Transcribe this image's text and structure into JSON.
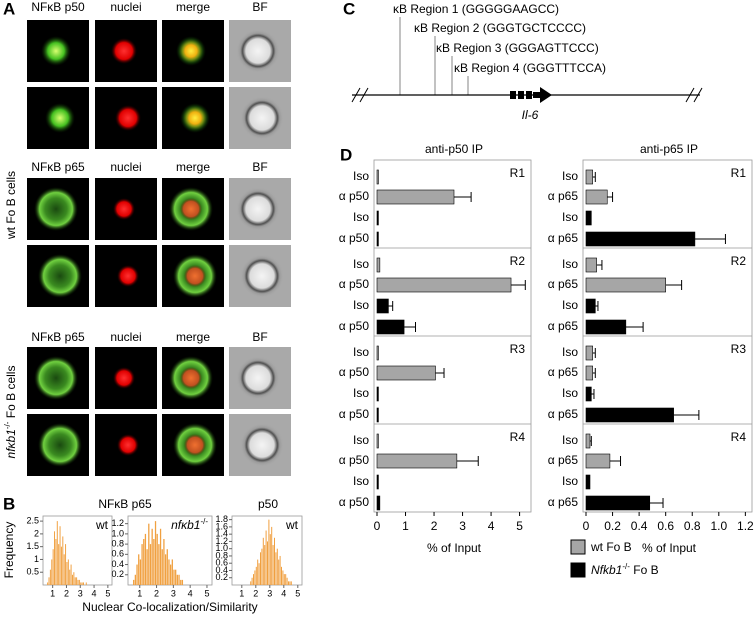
{
  "panel_a": {
    "letter": "A",
    "blocks": [
      {
        "headers": [
          "NFκB p50",
          "nuclei",
          "merge",
          "BF"
        ]
      },
      {
        "headers": [
          "NFκB p65",
          "nuclei",
          "merge",
          "BF"
        ]
      },
      {
        "headers": [
          "NFκB p65",
          "nuclei",
          "merge",
          "BF"
        ]
      }
    ],
    "wt_label": "wt Fo B cells",
    "ko_label": {
      "italic": "nfκb1",
      "sup": "-/-",
      "text": " Fo B cells"
    }
  },
  "panel_b": {
    "letter": "B",
    "group_title": "NFκB p65",
    "p50_title": "p50",
    "ylabel": "Frequency",
    "xlabel": "Nuclear Co-localization/Similarity"
  },
  "panel_c": {
    "letter": "C",
    "regions": [
      "κB Region 1 (GGGGGAAGCC)",
      "κB Region 2 (GGGTGCTCCCC)",
      "κB Region 3 (GGGAGTTCCC)",
      "κB Region 4 (GGGTTTCCA)"
    ],
    "gene": "Il-6"
  },
  "panel_d": {
    "letter": "D",
    "legend": [
      {
        "text": "wt Fo B",
        "color": "#a6a6a6"
      },
      {
        "italic": "Nfkb1",
        "sup": "-/-",
        "text": " Fo B",
        "color": "#000000"
      }
    ]
  },
  "chart_data": [
    {
      "type": "histogram",
      "annotation": {
        "text": "wt"
      },
      "color": "#f0a040",
      "bins": [
        0.6,
        0.7,
        0.8,
        0.9,
        1.0,
        1.1,
        1.2,
        1.3,
        1.4,
        1.5,
        1.6,
        1.7,
        1.8,
        1.9,
        2.0,
        2.1,
        2.2,
        2.3,
        2.4,
        2.5,
        2.6,
        2.7,
        2.8,
        2.9,
        3.0,
        3.1,
        3.2,
        3.3,
        3.4,
        3.5,
        3.6
      ],
      "counts": [
        0.1,
        0.3,
        0.6,
        1.0,
        1.4,
        2.1,
        1.8,
        2.5,
        1.6,
        2.3,
        1.5,
        1.9,
        1.2,
        1.6,
        0.9,
        1.0,
        0.6,
        0.8,
        0.4,
        0.5,
        0.3,
        0.3,
        0.2,
        0.2,
        0.1,
        0.1,
        0.1,
        0,
        0.1,
        0
      ],
      "xlim": [
        0.3,
        5.3
      ],
      "xticks": [
        1,
        2,
        3,
        4,
        5
      ],
      "ylim": [
        0,
        2.7
      ],
      "yticks": [
        0.5,
        1,
        1.5,
        2,
        2.5
      ]
    },
    {
      "type": "histogram",
      "annotation": {
        "italic": "nfκb1",
        "sup": "-/-"
      },
      "color": "#f0a040",
      "bins": [
        0.6,
        0.7,
        0.8,
        0.9,
        1.0,
        1.1,
        1.2,
        1.3,
        1.4,
        1.5,
        1.6,
        1.7,
        1.8,
        1.9,
        2.0,
        2.1,
        2.2,
        2.3,
        2.4,
        2.5,
        2.6,
        2.7,
        2.8,
        2.9,
        3.0,
        3.1,
        3.2,
        3.3,
        3.4,
        3.5,
        3.6
      ],
      "counts": [
        0.1,
        0.2,
        0.4,
        0.6,
        0.5,
        0.8,
        0.9,
        1.0,
        0.7,
        1.2,
        0.8,
        1.1,
        0.9,
        1.25,
        1.0,
        0.8,
        1.1,
        0.7,
        0.9,
        0.6,
        0.7,
        0.5,
        0.4,
        0.5,
        0.3,
        0.3,
        0.2,
        0.2,
        0.1,
        0.1
      ],
      "xlim": [
        0.3,
        5.3
      ],
      "xticks": [
        1,
        2,
        3,
        4,
        5
      ],
      "ylim": [
        0,
        1.35
      ],
      "yticks": [
        0.2,
        0.4,
        0.6,
        0.8,
        {
          "value": 1,
          "label": "1.0"
        },
        1.2
      ]
    },
    {
      "type": "histogram",
      "annotation": {
        "text": "wt"
      },
      "color": "#f0a040",
      "bins": [
        1.6,
        1.7,
        1.8,
        1.9,
        2.0,
        2.1,
        2.2,
        2.3,
        2.4,
        2.5,
        2.6,
        2.7,
        2.8,
        2.9,
        3.0,
        3.1,
        3.2,
        3.3,
        3.4,
        3.5,
        3.6,
        3.7,
        3.8,
        3.9,
        4.0,
        4.1,
        4.2,
        4.3,
        4.4,
        4.5,
        4.6
      ],
      "counts": [
        0.1,
        0.2,
        0.3,
        0.4,
        0.5,
        0.7,
        0.6,
        0.9,
        1.0,
        1.3,
        1.1,
        1.5,
        1.2,
        1.8,
        1.4,
        1.6,
        1.1,
        1.3,
        0.9,
        1.0,
        0.7,
        0.8,
        0.5,
        0.4,
        0.3,
        0.3,
        0.2,
        0.1,
        0.1,
        0.1
      ],
      "xlim": [
        0.3,
        5.3
      ],
      "xticks": [
        1,
        2,
        3,
        4,
        5
      ],
      "ylim": [
        0,
        1.9
      ],
      "yticks": [
        0.2,
        0.4,
        0.6,
        0.8,
        {
          "value": 1,
          "label": "1.0"
        },
        1.2,
        1.4,
        1.6,
        1.8
      ]
    },
    {
      "type": "hbar",
      "title": "anti-p50 IP",
      "xlabel": "% of Input",
      "xlim": [
        0,
        5.4
      ],
      "xticks": [
        0,
        1,
        2,
        3,
        4,
        5
      ],
      "regions": [
        {
          "label": "R1",
          "categories": [
            "Iso",
            "α p50",
            "Iso",
            "α p50"
          ],
          "values": [
            0.05,
            2.7,
            0.05,
            0.05
          ],
          "errors": [
            null,
            0.6,
            null,
            null
          ],
          "colors": [
            "#a6a6a6",
            "#a6a6a6",
            "#000000",
            "#000000"
          ]
        },
        {
          "label": "R2",
          "categories": [
            "Iso",
            "α p50",
            "Iso",
            "α p50"
          ],
          "values": [
            0.1,
            4.7,
            0.4,
            0.95
          ],
          "errors": [
            null,
            0.5,
            0.15,
            0.4
          ],
          "colors": [
            "#a6a6a6",
            "#a6a6a6",
            "#000000",
            "#000000"
          ]
        },
        {
          "label": "R3",
          "categories": [
            "Iso",
            "α p50",
            "Iso",
            "α p50"
          ],
          "values": [
            0.05,
            2.05,
            0.05,
            0.05
          ],
          "errors": [
            null,
            0.3,
            null,
            null
          ],
          "colors": [
            "#a6a6a6",
            "#a6a6a6",
            "#000000",
            "#000000"
          ]
        },
        {
          "label": "R4",
          "categories": [
            "Iso",
            "α p50",
            "Iso",
            "α p50"
          ],
          "values": [
            0.05,
            2.8,
            0.05,
            0.1
          ],
          "errors": [
            null,
            0.75,
            null,
            null
          ],
          "colors": [
            "#a6a6a6",
            "#a6a6a6",
            "#000000",
            "#000000"
          ]
        }
      ]
    },
    {
      "type": "hbar",
      "title": "anti-p65 IP",
      "xlabel": "% of Input",
      "xlim": [
        0,
        1.25
      ],
      "xticks": [
        0,
        0.2,
        0.4,
        0.6,
        0.8,
        {
          "value": 1,
          "label": "1.0"
        },
        1.2
      ],
      "regions": [
        {
          "label": "R1",
          "categories": [
            "Iso",
            "α p65",
            "Iso",
            "α p65"
          ],
          "values": [
            0.05,
            0.16,
            0.04,
            0.82
          ],
          "errors": [
            0.02,
            0.04,
            null,
            0.23
          ],
          "colors": [
            "#a6a6a6",
            "#a6a6a6",
            "#000000",
            "#000000"
          ]
        },
        {
          "label": "R2",
          "categories": [
            "Iso",
            "α p65",
            "Iso",
            "α p65"
          ],
          "values": [
            0.08,
            0.6,
            0.07,
            0.3
          ],
          "errors": [
            0.04,
            0.12,
            0.02,
            0.13
          ],
          "colors": [
            "#a6a6a6",
            "#a6a6a6",
            "#000000",
            "#000000"
          ]
        },
        {
          "label": "R3",
          "categories": [
            "Iso",
            "α p65",
            "Iso",
            "α p65"
          ],
          "values": [
            0.05,
            0.05,
            0.04,
            0.66
          ],
          "errors": [
            0.02,
            0.02,
            0.02,
            0.19
          ],
          "colors": [
            "#a6a6a6",
            "#a6a6a6",
            "#000000",
            "#000000"
          ]
        },
        {
          "label": "R4",
          "categories": [
            "Iso",
            "α p65",
            "Iso",
            "α p65"
          ],
          "values": [
            0.03,
            0.18,
            0.03,
            0.48
          ],
          "errors": [
            0.01,
            0.08,
            null,
            0.1
          ],
          "colors": [
            "#a6a6a6",
            "#a6a6a6",
            "#000000",
            "#000000"
          ]
        }
      ]
    }
  ]
}
